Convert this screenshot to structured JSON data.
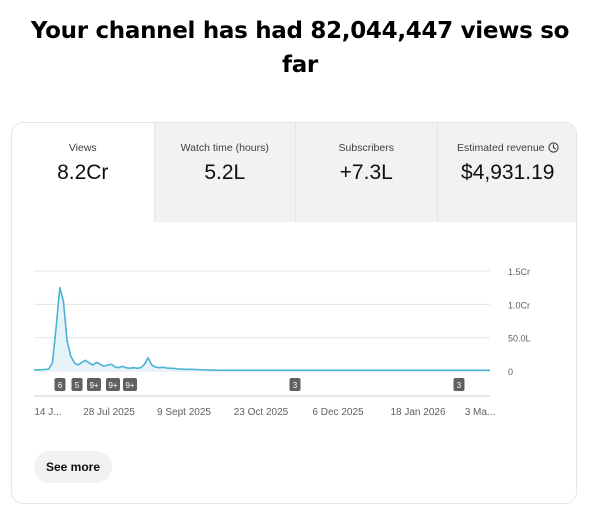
{
  "headline": {
    "line1": "Your channel has had 82,044,447 views so",
    "line2": "far"
  },
  "metrics": [
    {
      "label": "Views",
      "value": "8.2Cr"
    },
    {
      "label": "Watch time (hours)",
      "value": "5.2L"
    },
    {
      "label": "Subscribers",
      "value": "+7.3L"
    },
    {
      "label": "Estimated revenue",
      "value": "$4,931.19"
    }
  ],
  "icons": {
    "revenue_info": "clock-icon"
  },
  "see_more_label": "See more",
  "colors": {
    "line": "#4ab3d6",
    "area": "#e6f4fa",
    "grid": "#e5e5e5",
    "marker": "#606060"
  },
  "chart_data": {
    "type": "area",
    "y_tick_labels": [
      "0",
      "50.0L",
      "1.0Cr",
      "1.5Cr"
    ],
    "y_tick_values": [
      0,
      5000000,
      10000000,
      15000000
    ],
    "x_tick_labels": [
      "14 J...",
      "28 Jul 2025",
      "9 Sept 2025",
      "23 Oct 2025",
      "6 Dec 2025",
      "18 Jan 2026",
      "3 Ma..."
    ],
    "ylim": [
      0,
      15000000
    ],
    "grid": true,
    "series": [
      {
        "values": [
          150000,
          180000,
          200000,
          220000,
          300000,
          1200000,
          6500000,
          12500000,
          10500000,
          4500000,
          2200000,
          1200000,
          900000,
          1300000,
          1600000,
          1200000,
          900000,
          1300000,
          1000000,
          700000,
          900000,
          1000000,
          600000,
          500000,
          700000,
          500000,
          400000,
          500000,
          400000,
          500000,
          1000000,
          2000000,
          900000,
          600000,
          500000,
          550000,
          450000,
          400000,
          400000,
          300000,
          280000,
          250000,
          250000,
          250000,
          230000,
          200000,
          180000,
          150000,
          130000,
          120000,
          100000
        ]
      }
    ],
    "event_markers": [
      "6",
      "5",
      "9+",
      "9+",
      "9+",
      "3",
      "3"
    ]
  }
}
